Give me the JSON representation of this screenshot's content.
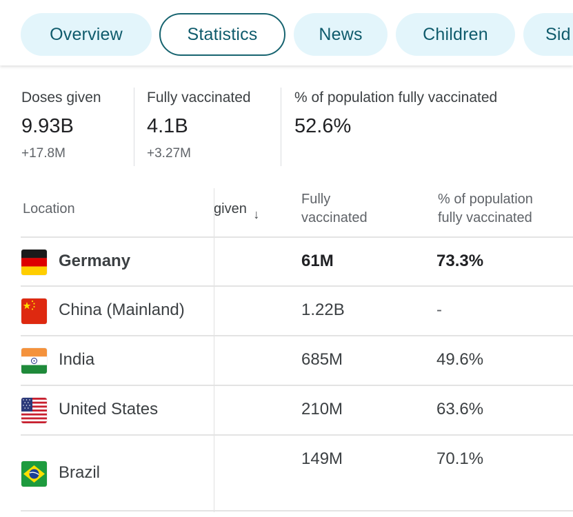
{
  "tabs": [
    {
      "label": "Overview",
      "selected": false
    },
    {
      "label": "Statistics",
      "selected": true
    },
    {
      "label": "News",
      "selected": false
    },
    {
      "label": "Children",
      "selected": false
    },
    {
      "label": "Sid",
      "selected": false
    }
  ],
  "summary": {
    "doses_given": {
      "label": "Doses given",
      "value": "9.93B",
      "delta": "+17.8M"
    },
    "fully_vaccinated": {
      "label": "Fully vaccinated",
      "value": "4.1B",
      "delta": "+3.27M"
    },
    "percent_fully": {
      "label": "% of population fully vaccinated",
      "value": "52.6%"
    }
  },
  "table": {
    "headers": {
      "location": "Location",
      "doses_given": "given",
      "sort_icon": "↓",
      "fully_line1": "Fully",
      "fully_line2": "vaccinated",
      "pct_line1": "% of population",
      "pct_line2": "fully vaccinated"
    },
    "rows": [
      {
        "location": "Germany",
        "flag": "germany-flag-icon",
        "fully": "61M",
        "pct": "73.3%",
        "highlight": true
      },
      {
        "location": "China (Mainland)",
        "flag": "china-flag-icon",
        "fully": "1.22B",
        "pct": "-"
      },
      {
        "location": "India",
        "flag": "india-flag-icon",
        "fully": "685M",
        "pct": "49.6%"
      },
      {
        "location": "United States",
        "flag": "us-flag-icon",
        "fully": "210M",
        "pct": "63.6%"
      },
      {
        "location": "Brazil",
        "flag": "brazil-flag-icon",
        "fully": "149M",
        "pct": "70.1%"
      }
    ]
  },
  "colors": {
    "tab_bg": "#e3f5fb",
    "tab_text": "#0f5b6c",
    "tab_selected_border": "#16636f"
  }
}
